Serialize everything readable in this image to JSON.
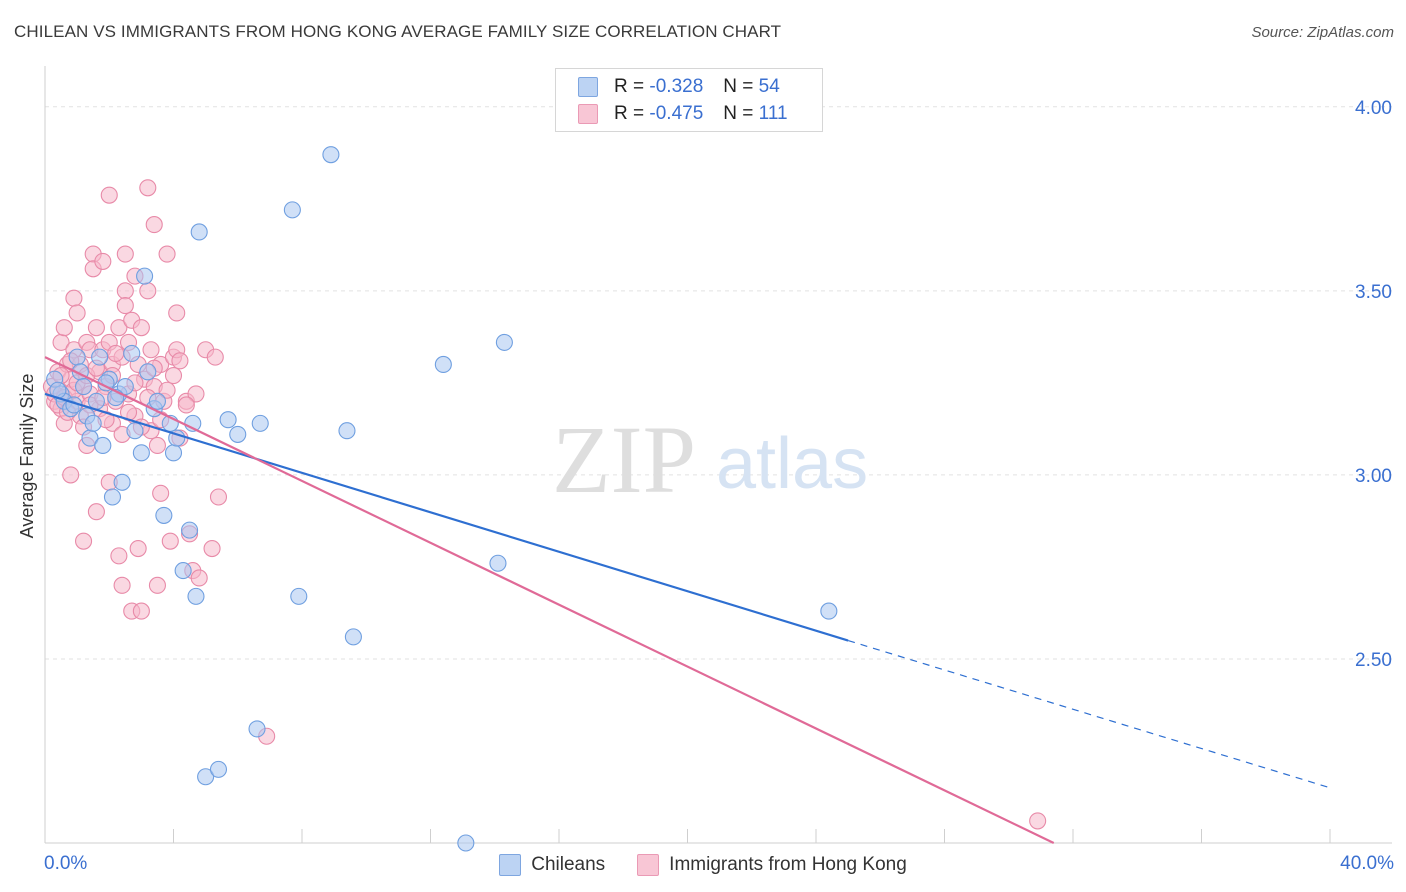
{
  "title": "CHILEAN VS IMMIGRANTS FROM HONG KONG AVERAGE FAMILY SIZE CORRELATION CHART",
  "source": "Source: ZipAtlas.com",
  "watermark": {
    "zip": "ZIP",
    "atlas": "atlas"
  },
  "legend": {
    "r_label": "R =",
    "n_label": "N =",
    "series": [
      {
        "name": "Chileans",
        "r": "-0.328",
        "n": "54",
        "fill": "#a9c7f0",
        "stroke": "#6f9fe0"
      },
      {
        "name": "Immigrants from Hong Kong",
        "r": "-0.475",
        "n": "111",
        "fill": "#f6b8cb",
        "stroke": "#e88aa8"
      }
    ]
  },
  "chart_data": {
    "type": "scatter",
    "ylabel": "Average Family Size",
    "xlabel": "",
    "xlim": [
      0,
      40
    ],
    "ylim": [
      2.0,
      4.1
    ],
    "x_tick_labels": [
      "0.0%",
      "40.0%"
    ],
    "y_ticks": [
      2.5,
      3.0,
      3.5,
      4.0
    ],
    "y_tick_labels": [
      "2.50",
      "3.00",
      "3.50",
      "4.00"
    ],
    "colors": {
      "blue_line": "#2e6fd1",
      "pink_line": "#e06a97",
      "axis_label": "#3a6fd0"
    },
    "series": [
      {
        "name": "Chileans",
        "trend": {
          "x0": 0,
          "y0": 3.22,
          "x1": 25,
          "y1": 2.55,
          "dash_to_x": 40,
          "dash_to_y": 2.15
        },
        "points": [
          [
            0.3,
            3.26
          ],
          [
            0.5,
            3.22
          ],
          [
            0.6,
            3.2
          ],
          [
            0.8,
            3.18
          ],
          [
            1.0,
            3.32
          ],
          [
            1.1,
            3.28
          ],
          [
            1.2,
            3.24
          ],
          [
            1.3,
            3.16
          ],
          [
            1.4,
            3.1
          ],
          [
            1.5,
            3.14
          ],
          [
            1.6,
            3.2
          ],
          [
            1.7,
            3.32
          ],
          [
            1.8,
            3.08
          ],
          [
            2.0,
            3.26
          ],
          [
            2.1,
            2.94
          ],
          [
            2.3,
            3.22
          ],
          [
            2.4,
            2.98
          ],
          [
            2.5,
            3.24
          ],
          [
            2.7,
            3.33
          ],
          [
            2.8,
            3.12
          ],
          [
            3.0,
            3.06
          ],
          [
            3.1,
            3.54
          ],
          [
            3.2,
            3.28
          ],
          [
            3.4,
            3.18
          ],
          [
            3.5,
            3.2
          ],
          [
            3.7,
            2.89
          ],
          [
            3.9,
            3.14
          ],
          [
            4.0,
            3.06
          ],
          [
            4.1,
            3.1
          ],
          [
            4.3,
            2.74
          ],
          [
            4.5,
            2.85
          ],
          [
            4.6,
            3.14
          ],
          [
            4.7,
            2.67
          ],
          [
            4.8,
            3.66
          ],
          [
            5.0,
            2.18
          ],
          [
            5.4,
            2.2
          ],
          [
            5.7,
            3.15
          ],
          [
            6.0,
            3.11
          ],
          [
            6.6,
            2.31
          ],
          [
            6.7,
            3.14
          ],
          [
            7.7,
            3.72
          ],
          [
            7.9,
            2.67
          ],
          [
            8.9,
            3.87
          ],
          [
            9.4,
            3.12
          ],
          [
            9.6,
            2.56
          ],
          [
            12.4,
            3.3
          ],
          [
            13.1,
            2.0
          ],
          [
            14.1,
            2.76
          ],
          [
            14.3,
            3.36
          ],
          [
            24.4,
            2.63
          ],
          [
            0.4,
            3.23
          ],
          [
            0.9,
            3.19
          ],
          [
            2.2,
            3.21
          ],
          [
            1.9,
            3.25
          ]
        ]
      },
      {
        "name": "Immigrants from Hong Kong",
        "trend": {
          "x0": 0,
          "y0": 3.32,
          "x1": 31.4,
          "y1": 2.0
        },
        "points": [
          [
            0.2,
            3.24
          ],
          [
            0.3,
            3.2
          ],
          [
            0.4,
            3.28
          ],
          [
            0.5,
            3.18
          ],
          [
            0.5,
            3.36
          ],
          [
            0.6,
            3.4
          ],
          [
            0.6,
            3.14
          ],
          [
            0.7,
            3.3
          ],
          [
            0.7,
            3.22
          ],
          [
            0.8,
            3.26
          ],
          [
            0.8,
            3.0
          ],
          [
            0.9,
            3.48
          ],
          [
            0.9,
            3.34
          ],
          [
            1.0,
            3.44
          ],
          [
            1.0,
            3.2
          ],
          [
            1.1,
            3.16
          ],
          [
            1.1,
            3.3
          ],
          [
            1.2,
            2.82
          ],
          [
            1.2,
            3.24
          ],
          [
            1.3,
            3.36
          ],
          [
            1.3,
            3.08
          ],
          [
            1.4,
            3.34
          ],
          [
            1.4,
            3.22
          ],
          [
            1.5,
            3.6
          ],
          [
            1.5,
            3.56
          ],
          [
            1.6,
            3.4
          ],
          [
            1.6,
            2.9
          ],
          [
            1.7,
            3.18
          ],
          [
            1.7,
            3.28
          ],
          [
            1.8,
            3.58
          ],
          [
            1.8,
            3.34
          ],
          [
            1.9,
            3.24
          ],
          [
            2.0,
            3.76
          ],
          [
            2.0,
            3.36
          ],
          [
            2.0,
            2.98
          ],
          [
            2.1,
            3.3
          ],
          [
            2.1,
            3.14
          ],
          [
            2.2,
            3.2
          ],
          [
            2.3,
            2.78
          ],
          [
            2.3,
            3.4
          ],
          [
            2.4,
            3.32
          ],
          [
            2.4,
            2.7
          ],
          [
            2.5,
            3.5
          ],
          [
            2.5,
            3.46
          ],
          [
            2.5,
            3.6
          ],
          [
            2.6,
            3.36
          ],
          [
            2.6,
            3.22
          ],
          [
            2.7,
            3.42
          ],
          [
            2.7,
            2.63
          ],
          [
            2.8,
            3.54
          ],
          [
            2.8,
            3.16
          ],
          [
            2.9,
            3.3
          ],
          [
            2.9,
            2.8
          ],
          [
            3.0,
            2.63
          ],
          [
            3.0,
            3.4
          ],
          [
            3.1,
            3.26
          ],
          [
            3.2,
            3.78
          ],
          [
            3.2,
            3.5
          ],
          [
            3.3,
            3.34
          ],
          [
            3.3,
            3.12
          ],
          [
            3.4,
            3.68
          ],
          [
            3.4,
            3.24
          ],
          [
            3.5,
            2.7
          ],
          [
            3.5,
            3.08
          ],
          [
            3.6,
            3.3
          ],
          [
            3.6,
            2.95
          ],
          [
            3.7,
            3.2
          ],
          [
            3.8,
            3.6
          ],
          [
            3.9,
            2.82
          ],
          [
            4.0,
            3.32
          ],
          [
            4.1,
            3.44
          ],
          [
            4.1,
            3.34
          ],
          [
            4.2,
            3.1
          ],
          [
            4.4,
            3.2
          ],
          [
            4.5,
            2.84
          ],
          [
            4.6,
            2.74
          ],
          [
            4.7,
            3.22
          ],
          [
            4.8,
            2.72
          ],
          [
            5.0,
            3.34
          ],
          [
            5.2,
            2.8
          ],
          [
            5.3,
            3.32
          ],
          [
            5.4,
            2.94
          ],
          [
            6.9,
            2.29
          ],
          [
            30.9,
            2.06
          ],
          [
            0.3,
            3.22
          ],
          [
            0.4,
            3.19
          ],
          [
            0.6,
            3.21
          ],
          [
            0.7,
            3.17
          ],
          [
            0.9,
            3.23
          ],
          [
            1.0,
            3.25
          ],
          [
            1.2,
            3.13
          ],
          [
            1.3,
            3.27
          ],
          [
            1.4,
            3.19
          ],
          [
            1.6,
            3.29
          ],
          [
            1.8,
            3.21
          ],
          [
            1.9,
            3.15
          ],
          [
            2.1,
            3.27
          ],
          [
            2.2,
            3.33
          ],
          [
            2.4,
            3.11
          ],
          [
            2.6,
            3.17
          ],
          [
            2.8,
            3.25
          ],
          [
            3.0,
            3.13
          ],
          [
            3.2,
            3.21
          ],
          [
            3.4,
            3.29
          ],
          [
            3.6,
            3.15
          ],
          [
            3.8,
            3.23
          ],
          [
            4.0,
            3.27
          ],
          [
            4.2,
            3.31
          ],
          [
            4.4,
            3.19
          ],
          [
            0.5,
            3.27
          ],
          [
            0.8,
            3.31
          ]
        ]
      }
    ]
  }
}
